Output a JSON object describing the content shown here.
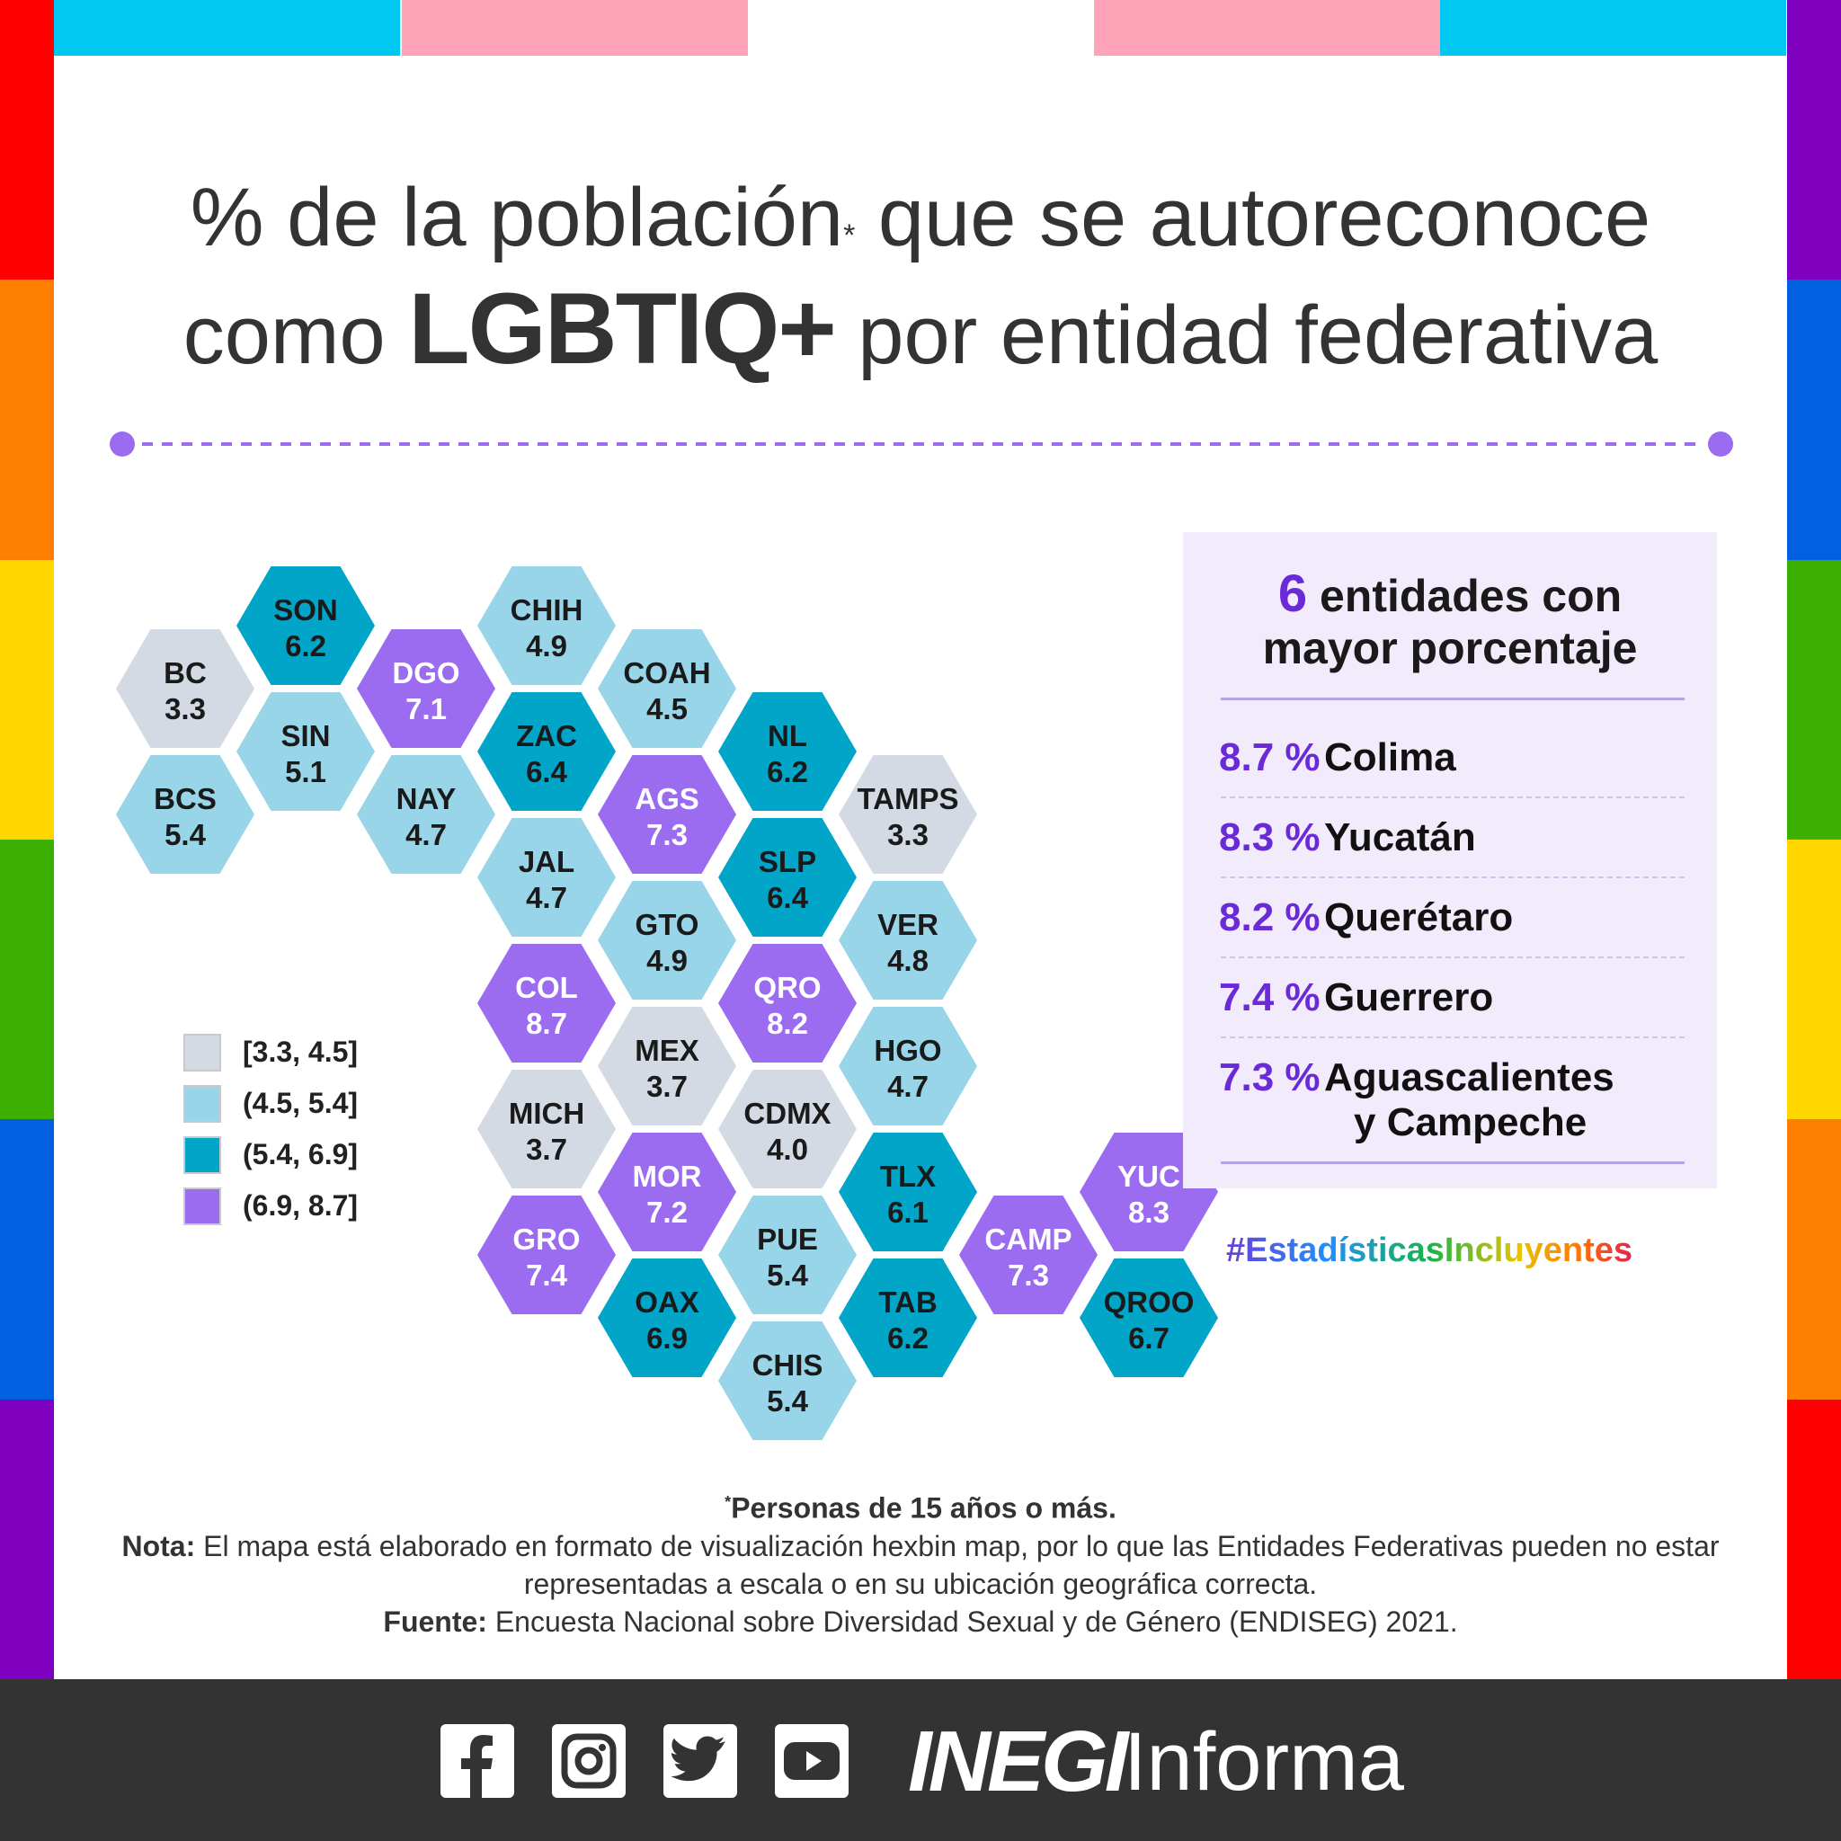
{
  "title": {
    "line1": "% de la población",
    "asterisk": "*",
    "line1_rest": " que se autoreconoce",
    "line2_pre": "como ",
    "line2_bold": "LGBTIQ+",
    "line2_post": " por entidad federativa"
  },
  "colors": {
    "range1": "#d3dae3",
    "range2": "#99d5e8",
    "range3": "#00a5c8",
    "range4": "#9b6cf0",
    "accent": "#6a2ad8",
    "footer": "#333333",
    "rail_left": [
      "#ff0000",
      "#ff7f00",
      "#ffd700",
      "#3cb000",
      "#0060e0",
      "#8000c0"
    ],
    "rail_right": [
      "#8000c0",
      "#0060e0",
      "#3cb000",
      "#ffd700",
      "#ff7f00",
      "#ff0000"
    ]
  },
  "legend": [
    {
      "label": "[3.3, 4.5]",
      "range": 1
    },
    {
      "label": "(4.5, 5.4]",
      "range": 2
    },
    {
      "label": "(5.4, 6.9]",
      "range": 3
    },
    {
      "label": "(6.9, 8.7]",
      "range": 4
    }
  ],
  "states": [
    {
      "code": "BC",
      "value": "3.3",
      "range": 1,
      "col": 0,
      "row": 1
    },
    {
      "code": "BCS",
      "value": "5.4",
      "range": 2,
      "col": 0,
      "row": 3
    },
    {
      "code": "SON",
      "value": "6.2",
      "range": 3,
      "col": 1,
      "row": 0
    },
    {
      "code": "SIN",
      "value": "5.1",
      "range": 2,
      "col": 1,
      "row": 2
    },
    {
      "code": "DGO",
      "value": "7.1",
      "range": 4,
      "col": 2,
      "row": 1
    },
    {
      "code": "NAY",
      "value": "4.7",
      "range": 2,
      "col": 2,
      "row": 3
    },
    {
      "code": "CHIH",
      "value": "4.9",
      "range": 2,
      "col": 3,
      "row": 0
    },
    {
      "code": "ZAC",
      "value": "6.4",
      "range": 3,
      "col": 3,
      "row": 2
    },
    {
      "code": "JAL",
      "value": "4.7",
      "range": 2,
      "col": 3,
      "row": 4
    },
    {
      "code": "COL",
      "value": "8.7",
      "range": 4,
      "col": 3,
      "row": 6
    },
    {
      "code": "MICH",
      "value": "3.7",
      "range": 1,
      "col": 3,
      "row": 8
    },
    {
      "code": "GRO",
      "value": "7.4",
      "range": 4,
      "col": 3,
      "row": 10
    },
    {
      "code": "COAH",
      "value": "4.5",
      "range": 2,
      "col": 4,
      "row": 1
    },
    {
      "code": "AGS",
      "value": "7.3",
      "range": 4,
      "col": 4,
      "row": 3
    },
    {
      "code": "GTO",
      "value": "4.9",
      "range": 2,
      "col": 4,
      "row": 5
    },
    {
      "code": "MEX",
      "value": "3.7",
      "range": 1,
      "col": 4,
      "row": 7
    },
    {
      "code": "MOR",
      "value": "7.2",
      "range": 4,
      "col": 4,
      "row": 9
    },
    {
      "code": "OAX",
      "value": "6.9",
      "range": 3,
      "col": 4,
      "row": 11
    },
    {
      "code": "NL",
      "value": "6.2",
      "range": 3,
      "col": 5,
      "row": 2
    },
    {
      "code": "SLP",
      "value": "6.4",
      "range": 3,
      "col": 5,
      "row": 4
    },
    {
      "code": "QRO",
      "value": "8.2",
      "range": 4,
      "col": 5,
      "row": 6
    },
    {
      "code": "CDMX",
      "value": "4.0",
      "range": 1,
      "col": 5,
      "row": 8
    },
    {
      "code": "PUE",
      "value": "5.4",
      "range": 2,
      "col": 5,
      "row": 10
    },
    {
      "code": "CHIS",
      "value": "5.4",
      "range": 2,
      "col": 5,
      "row": 12
    },
    {
      "code": "TAMPS",
      "value": "3.3",
      "range": 1,
      "col": 6,
      "row": 3
    },
    {
      "code": "VER",
      "value": "4.8",
      "range": 2,
      "col": 6,
      "row": 5
    },
    {
      "code": "HGO",
      "value": "4.7",
      "range": 2,
      "col": 6,
      "row": 7
    },
    {
      "code": "TLX",
      "value": "6.1",
      "range": 3,
      "col": 6,
      "row": 9
    },
    {
      "code": "TAB",
      "value": "6.2",
      "range": 3,
      "col": 6,
      "row": 11
    },
    {
      "code": "CAMP",
      "value": "7.3",
      "range": 4,
      "col": 7,
      "row": 10
    },
    {
      "code": "YUC",
      "value": "8.3",
      "range": 4,
      "col": 8,
      "row": 9
    },
    {
      "code": "QROO",
      "value": "6.7",
      "range": 3,
      "col": 8,
      "row": 11
    }
  ],
  "top6": {
    "title_num": "6",
    "title_rest": " entidades con",
    "title_line2": "mayor porcentaje",
    "rows": [
      {
        "pct": "8.7 %",
        "name": "Colima"
      },
      {
        "pct": "8.3 %",
        "name": "Yucatán"
      },
      {
        "pct": "8.2 %",
        "name": "Querétaro"
      },
      {
        "pct": "7.4 %",
        "name": "Guerrero"
      },
      {
        "pct": "7.3 %",
        "name": "Aguascalientes",
        "name2": "y Campeche"
      }
    ]
  },
  "hashtag": "#EstadísticasIncluyentes",
  "notes": {
    "asterisk": "*",
    "persons": "Personas de 15 años o más.",
    "nota_label": "Nota:",
    "nota_text": " El mapa está elaborado en formato de visualización hexbin map, por lo que las Entidades Federativas pueden no estar representadas a escala o en su ubicación geográfica correcta.",
    "fuente_label": "Fuente:",
    "fuente_text": " Encuesta Nacional sobre Diversidad Sexual y de Género (ENDISEG) 2021."
  },
  "footer": {
    "icons": [
      "facebook-icon",
      "instagram-icon",
      "twitter-icon",
      "youtube-icon"
    ],
    "brand_bold": "INEGI",
    "brand_light": "Informa"
  }
}
